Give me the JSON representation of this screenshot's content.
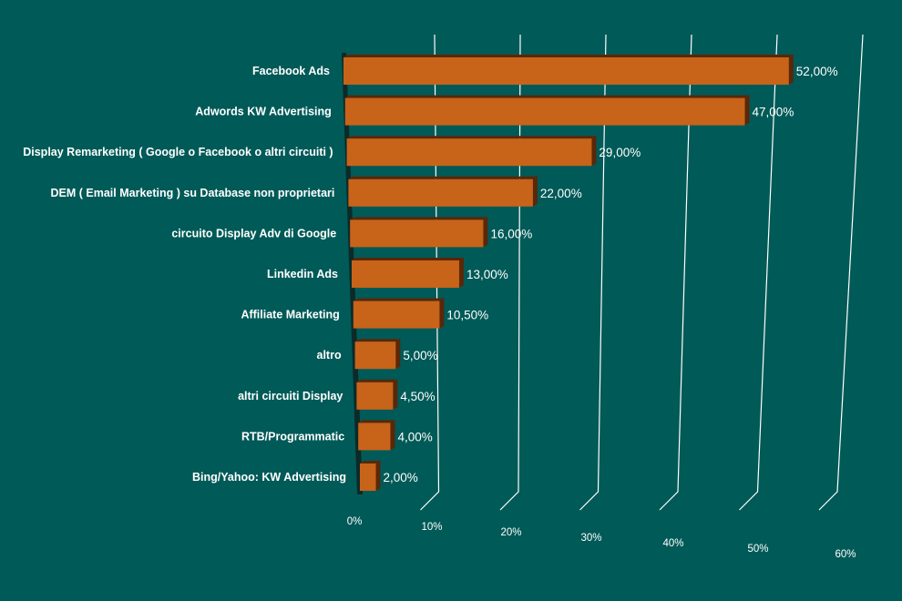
{
  "chart_data": {
    "type": "bar",
    "orientation": "horizontal",
    "style": "3d",
    "title": "",
    "xlabel": "",
    "ylabel": "",
    "categories": [
      "Facebook Ads",
      "Adwords KW Advertising",
      "Display Remarketing ( Google o Facebook o altri circuiti )",
      "DEM ( Email Marketing ) su Database non proprietari",
      "circuito Display Adv di Google",
      "Linkedin Ads",
      "Affiliate Marketing",
      "altro",
      "altri circuiti Display",
      "RTB/Programmatic",
      "Bing/Yahoo: KW Advertising"
    ],
    "values": [
      52,
      47,
      29,
      22,
      16,
      13,
      10.5,
      5,
      4.5,
      4,
      2
    ],
    "value_labels": [
      "52,00%",
      "47,00%",
      "29,00%",
      "22,00%",
      "16,00%",
      "13,00%",
      "10,50%",
      "5,00%",
      "4,50%",
      "4,00%",
      "2,00%"
    ],
    "xlim": [
      0,
      60
    ],
    "x_ticks": [
      "0%",
      "10%",
      "20%",
      "30%",
      "40%",
      "50%",
      "60%"
    ],
    "grid": true,
    "legend": "none",
    "colors": {
      "background": "#005a58",
      "bar_front": "#c8631a",
      "bar_side": "#5a2708",
      "bar_top": "#d97a35",
      "text": "#ffffff",
      "grid": "#ffffff"
    }
  }
}
